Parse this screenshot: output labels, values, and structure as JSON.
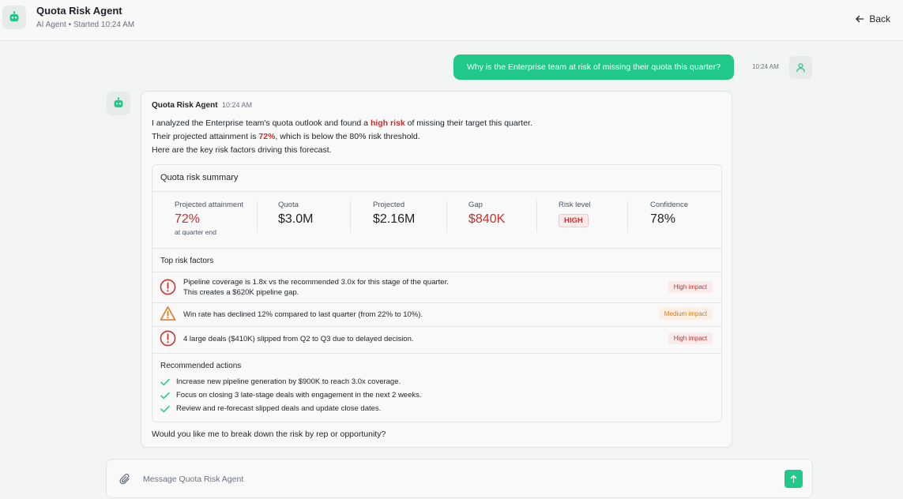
{
  "header": {
    "title": "Quota Risk Agent",
    "subtitle": "AI Agent • Started 10:24 AM",
    "back_label": "Back",
    "avatar_icon": "robot-icon"
  },
  "user_message": {
    "text": "Why is the Enterprise team at risk of missing their quota this quarter?",
    "time": "10:24 AM",
    "avatar_icon": "user-icon"
  },
  "agent_message": {
    "name": "Quota Risk Agent",
    "time": "10:24 AM",
    "intro": {
      "line1_pre": "I analyzed the Enterprise team's quota outlook and found a ",
      "line1_highlight": "high risk",
      "line1_post": " of missing their target this quarter.",
      "line2_pre": "Their projected attainment is ",
      "line2_highlight": "72%",
      "line2_post": ", which is below the 80% risk threshold.",
      "line3": "Here are the key risk factors driving this forecast."
    },
    "summary": {
      "title": "Quota risk summary",
      "metrics": [
        {
          "label": "Projected attainment",
          "value": "72%",
          "sub": "at quarter end"
        },
        {
          "label": "Quota",
          "value": "$3.0M"
        },
        {
          "label": "Projected",
          "value": "$2.16M"
        },
        {
          "label": "Gap",
          "value": "$840K"
        },
        {
          "label": "Risk level",
          "value": "HIGH"
        },
        {
          "label": "Confidence",
          "value": "78%"
        }
      ],
      "factors_title": "Top risk factors",
      "factors": [
        {
          "line1": "Pipeline coverage is 1.8x vs the recommended 3.0x for this stage of the quarter.",
          "line2": "This creates a $620K pipeline gap.",
          "impact": "High impact",
          "icon": "alert-circle-icon"
        },
        {
          "line1": "Win rate has declined 12% compared to last quarter (from 22% to 10%).",
          "impact": "Medium impact",
          "icon": "warning-triangle-icon"
        },
        {
          "line1": "4 large deals ($410K) slipped from Q2 to Q3 due to delayed decision.",
          "impact": "High impact",
          "icon": "alert-circle-icon"
        }
      ],
      "actions_title": "Recommended actions",
      "actions": [
        "Increase new pipeline generation by $900K to reach 3.0x coverage.",
        "Focus on closing 3 late-stage deals with engagement in the next 2 weeks.",
        "Review and re-forecast slipped deals and update close dates."
      ]
    },
    "closing": "Would you like me to break down the risk by rep or opportunity?"
  },
  "composer": {
    "placeholder": "Message Quota Risk Agent",
    "value": "",
    "attach_icon": "paperclip-icon",
    "send_icon": "arrow-up-icon"
  },
  "colors": {
    "accent": "#20c98a",
    "danger": "#c9302c",
    "warning": "#d97a1a"
  }
}
